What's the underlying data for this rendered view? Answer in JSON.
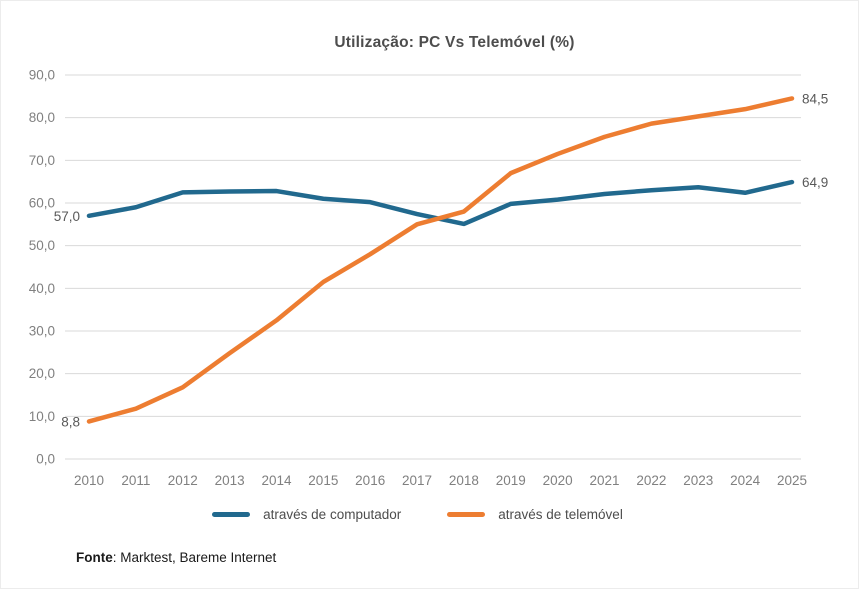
{
  "title": "Utilização: PC Vs Telemóvel (%)",
  "footer": {
    "bold": "Fonte",
    "rest": ": Marktest, Bareme Internet"
  },
  "colors": {
    "computer_line": "#21698E",
    "mobile_line": "#ED7D31",
    "grid": "#D9D9D9",
    "tick_text": "#808080",
    "title_text": "#4D4D4D",
    "legend_text": "#4D4D4D",
    "data_label_text": "#595959"
  },
  "chart_data": {
    "type": "line",
    "title": "Utilização: PC Vs Telemóvel (%)",
    "x": [
      2010,
      2011,
      2012,
      2013,
      2014,
      2015,
      2016,
      2017,
      2018,
      2019,
      2020,
      2021,
      2022,
      2023,
      2024,
      2025
    ],
    "series": [
      {
        "name": "através de computador",
        "color": "#21698E",
        "values": [
          57.0,
          59.0,
          62.5,
          62.7,
          62.8,
          61.0,
          60.2,
          57.4,
          55.1,
          59.8,
          60.8,
          62.1,
          63.0,
          63.7,
          62.4,
          64.9
        ],
        "first_point_label": "57,0",
        "last_point_label": "64,9"
      },
      {
        "name": "através de telemóvel",
        "color": "#ED7D31",
        "values": [
          8.8,
          11.8,
          16.8,
          24.8,
          32.5,
          41.5,
          48.0,
          55.0,
          58.0,
          67.0,
          71.5,
          75.5,
          78.6,
          80.3,
          82.0,
          84.5
        ],
        "first_point_label": "8,8",
        "last_point_label": "84,5"
      }
    ],
    "ylim": [
      0,
      90
    ],
    "yticks": [
      0,
      10,
      20,
      30,
      40,
      50,
      60,
      70,
      80,
      90
    ],
    "ytick_labels": [
      "0,0",
      "10,0",
      "20,0",
      "30,0",
      "40,0",
      "50,0",
      "60,0",
      "70,0",
      "80,0",
      "90,0"
    ],
    "grid": "horizontal",
    "legend_position": "bottom"
  }
}
